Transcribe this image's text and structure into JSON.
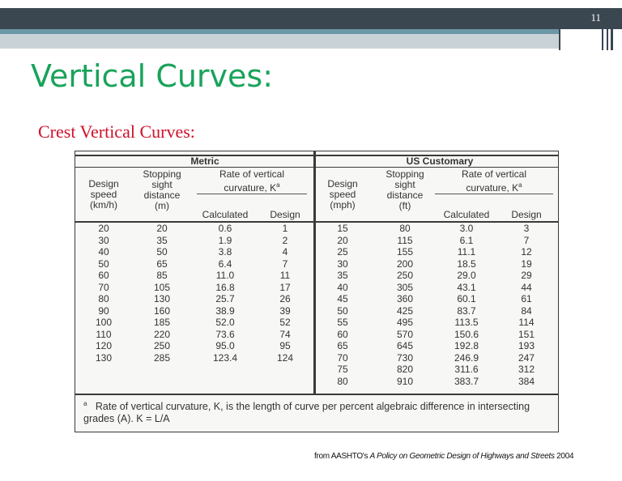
{
  "slide_number": "11",
  "title": "Vertical Curves:",
  "subtitle": "Crest Vertical Curves:",
  "table": {
    "metric_label": "Metric",
    "us_label": "US Customary",
    "metric_headers": {
      "speed": "Design\nspeed\n(km/h)",
      "ssd": "Stopping\nsight\ndistance\n(m)",
      "rate": "Rate of vertical\ncurvature, K",
      "calc": "Calculated",
      "design": "Design"
    },
    "us_headers": {
      "speed": "Design\nspeed\n(mph)",
      "ssd": "Stopping\nsight\ndistance\n(ft)",
      "rate": "Rate of vertical\ncurvature, K",
      "calc": "Calculated",
      "design": "Design"
    },
    "superscript": "a",
    "metric_rows": {
      "speed": [
        "20",
        "30",
        "40",
        "50",
        "60",
        "70",
        "80",
        "90",
        "100",
        "110",
        "120",
        "130"
      ],
      "ssd": [
        "20",
        "35",
        "50",
        "65",
        "85",
        "105",
        "130",
        "160",
        "185",
        "220",
        "250",
        "285"
      ],
      "calc": [
        "0.6",
        "1.9",
        "3.8",
        "6.4",
        "11.0",
        "16.8",
        "25.7",
        "38.9",
        "52.0",
        "73.6",
        "95.0",
        "123.4"
      ],
      "design": [
        "1",
        "2",
        "4",
        "7",
        "11",
        "17",
        "26",
        "39",
        "52",
        "74",
        "95",
        "124"
      ]
    },
    "us_rows": {
      "speed": [
        "15",
        "20",
        "25",
        "30",
        "35",
        "40",
        "45",
        "50",
        "55",
        "60",
        "65",
        "70",
        "75",
        "80"
      ],
      "ssd": [
        "80",
        "115",
        "155",
        "200",
        "250",
        "305",
        "360",
        "425",
        "495",
        "570",
        "645",
        "730",
        "820",
        "910"
      ],
      "calc": [
        "3.0",
        "6.1",
        "11.1",
        "18.5",
        "29.0",
        "43.1",
        "60.1",
        "83.7",
        "113.5",
        "150.6",
        "192.8",
        "246.9",
        "311.6",
        "383.7"
      ],
      "design": [
        "3",
        "7",
        "12",
        "19",
        "29",
        "44",
        "61",
        "84",
        "114",
        "151",
        "193",
        "247",
        "312",
        "384"
      ]
    },
    "footnote_marker": "a",
    "footnote": "Rate of vertical curvature, K, is the length of curve per percent algebraic difference in intersecting grades (A).  K = L/A"
  },
  "source": {
    "prefix": "from AASHTO's ",
    "italic": "A Policy on Geometric Design of Highways and Streets",
    "suffix": " 2004"
  }
}
